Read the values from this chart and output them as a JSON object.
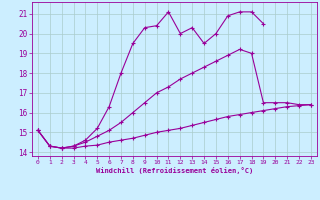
{
  "xlabel": "Windchill (Refroidissement éolien,°C)",
  "bg_color": "#cceeff",
  "grid_color": "#aacccc",
  "line_color": "#990099",
  "xlim": [
    -0.5,
    23.5
  ],
  "ylim": [
    13.8,
    21.6
  ],
  "xtick_labels": [
    "0",
    "1",
    "2",
    "3",
    "4",
    "5",
    "6",
    "7",
    "8",
    "9",
    "10",
    "11",
    "12",
    "13",
    "14",
    "15",
    "16",
    "17",
    "18",
    "19",
    "20",
    "21",
    "22",
    "23"
  ],
  "ytick_labels": [
    "14",
    "15",
    "16",
    "17",
    "18",
    "19",
    "20",
    "21"
  ],
  "series": [
    {
      "x": [
        0,
        1,
        2,
        3,
        4,
        5,
        6,
        7,
        8,
        9,
        10,
        11,
        12,
        13,
        14,
        15,
        16,
        17,
        18,
        19
      ],
      "y": [
        15.1,
        14.3,
        14.2,
        14.3,
        14.6,
        15.2,
        16.3,
        18.0,
        19.5,
        20.3,
        20.4,
        21.1,
        20.0,
        20.3,
        19.5,
        20.0,
        20.9,
        21.1,
        21.1,
        20.5
      ]
    },
    {
      "x": [
        0,
        1,
        2,
        3,
        4,
        5,
        6,
        7,
        8,
        9,
        10,
        11,
        12,
        13,
        14,
        15,
        16,
        17,
        18,
        19,
        20,
        21,
        22,
        23
      ],
      "y": [
        15.1,
        14.3,
        14.2,
        14.3,
        14.5,
        14.8,
        15.1,
        15.5,
        16.0,
        16.5,
        17.0,
        17.3,
        17.7,
        18.0,
        18.3,
        18.6,
        18.9,
        19.2,
        19.0,
        16.5,
        16.5,
        16.5,
        16.4,
        16.4
      ]
    },
    {
      "x": [
        0,
        1,
        2,
        3,
        4,
        5,
        6,
        7,
        8,
        9,
        10,
        11,
        12,
        13,
        14,
        15,
        16,
        17,
        18,
        19,
        20,
        21,
        22,
        23
      ],
      "y": [
        15.1,
        14.3,
        14.2,
        14.2,
        14.3,
        14.35,
        14.5,
        14.6,
        14.7,
        14.85,
        15.0,
        15.1,
        15.2,
        15.35,
        15.5,
        15.65,
        15.8,
        15.9,
        16.0,
        16.1,
        16.2,
        16.3,
        16.35,
        16.4
      ]
    }
  ]
}
